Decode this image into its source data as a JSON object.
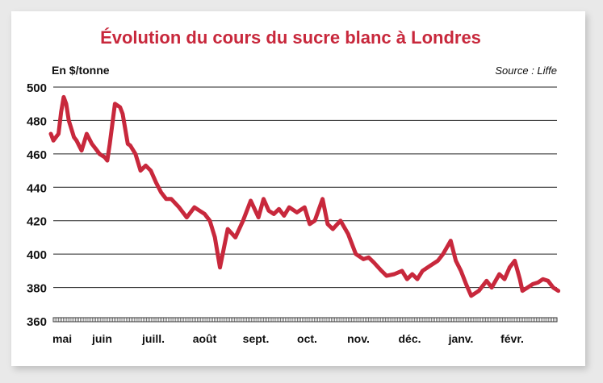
{
  "chart_data": {
    "type": "line",
    "title": "Évolution du cours du sucre blanc à Londres",
    "ylabel": "En $/tonne",
    "source": "Source : Liffe",
    "ylim": [
      360,
      500
    ],
    "yticks": [
      360,
      380,
      400,
      420,
      440,
      460,
      480,
      500
    ],
    "months": [
      "mai",
      "juin",
      "juill.",
      "août",
      "sept.",
      "oct.",
      "nov.",
      "déc.",
      "janv.",
      "févr."
    ],
    "grid": true,
    "series_color": "#c8283c",
    "x": [
      0,
      0.05,
      0.1,
      0.15,
      0.2,
      0.25,
      0.3,
      0.35,
      0.45,
      0.5,
      0.55,
      0.6,
      0.7,
      0.8,
      0.9,
      0.95,
      1.05,
      1.1,
      1.15,
      1.25,
      1.35,
      1.4,
      1.5,
      1.55,
      1.65,
      1.75,
      1.85,
      1.95,
      2.05,
      2.15,
      2.25,
      2.35,
      2.5,
      2.65,
      2.8,
      2.9,
      3.0,
      3.1,
      3.2,
      3.3,
      3.45,
      3.6,
      3.75,
      3.9,
      4.05,
      4.15,
      4.25,
      4.35,
      4.45,
      4.55,
      4.65,
      4.8,
      4.95,
      5.05,
      5.15,
      5.3,
      5.4,
      5.5,
      5.65,
      5.8,
      5.95,
      6.1,
      6.2,
      6.3,
      6.45,
      6.55,
      6.7,
      6.85,
      6.95,
      7.05,
      7.15,
      7.25,
      7.4,
      7.55,
      7.65,
      7.8,
      7.9,
      8.0,
      8.1,
      8.2,
      8.35,
      8.5,
      8.6,
      8.75,
      8.85,
      8.95,
      9.05,
      9.15,
      9.2,
      9.3,
      9.4,
      9.5,
      9.6,
      9.7,
      9.8,
      9.9
    ],
    "values": [
      472,
      468,
      470,
      472,
      485,
      494,
      490,
      480,
      470,
      468,
      465,
      462,
      472,
      466,
      462,
      460,
      458,
      456,
      466,
      490,
      488,
      484,
      466,
      465,
      460,
      450,
      453,
      450,
      443,
      437,
      433,
      433,
      428,
      422,
      428,
      426,
      424,
      420,
      410,
      392,
      415,
      410,
      420,
      432,
      422,
      433,
      426,
      424,
      427,
      423,
      428,
      425,
      428,
      418,
      420,
      433,
      418,
      415,
      420,
      412,
      400,
      397,
      398,
      395,
      390,
      387,
      388,
      390,
      385,
      388,
      385,
      390,
      393,
      396,
      400,
      408,
      396,
      390,
      382,
      375,
      378,
      384,
      380,
      388,
      385,
      392,
      396,
      385,
      378,
      380,
      382,
      383,
      385,
      384,
      380,
      378
    ]
  }
}
